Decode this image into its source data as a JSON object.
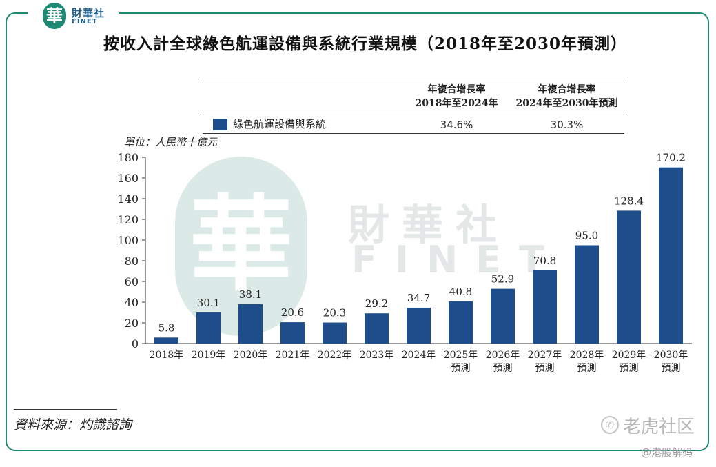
{
  "brand": {
    "badge": "華",
    "name_cn": "財華社",
    "name_en": "FINET"
  },
  "watermark": {
    "cn": "財華社",
    "en": "FINET",
    "badge": "華"
  },
  "watermark2": {
    "icon": "✆",
    "text": "老虎社区",
    "sub": "@港股解码"
  },
  "title": "按收入計全球綠色航運設備與系統行業規模（2018年至2030年預測）",
  "table": {
    "col1": [
      "年複合增長率",
      "2018年至2024年"
    ],
    "col2": [
      "年複合增長率",
      "2024年至2030年預測"
    ],
    "row_label": "綠色航運設備與系統",
    "cagr1": "34.6%",
    "cagr2": "30.3%"
  },
  "unit": "單位：人民幣十億元",
  "source": "資料來源：灼識諮詢",
  "colors": {
    "bar": "#1e4d8c",
    "frame": "#1f8a73"
  },
  "chart_data": {
    "type": "bar",
    "title": "按收入計全球綠色航運設備與系統行業規模（2018年至2030年預測）",
    "ylabel": "單位：人民幣十億元",
    "xlabel": "",
    "ylim": [
      0,
      180
    ],
    "yticks": [
      0,
      20,
      40,
      60,
      80,
      100,
      120,
      140,
      160,
      180
    ],
    "categories": [
      [
        "2018年"
      ],
      [
        "2019年"
      ],
      [
        "2020年"
      ],
      [
        "2021年"
      ],
      [
        "2022年"
      ],
      [
        "2023年"
      ],
      [
        "2024年"
      ],
      [
        "2025年",
        "預測"
      ],
      [
        "2026年",
        "預測"
      ],
      [
        "2027年",
        "預測"
      ],
      [
        "2028年",
        "預測"
      ],
      [
        "2029年",
        "預測"
      ],
      [
        "2030年",
        "預測"
      ]
    ],
    "values": [
      5.8,
      30.1,
      38.1,
      20.6,
      20.3,
      29.2,
      34.7,
      40.8,
      52.9,
      70.8,
      95.0,
      128.4,
      170.2
    ],
    "labels": [
      "5.8",
      "30.1",
      "38.1",
      "20.6",
      "20.3",
      "29.2",
      "34.7",
      "40.8",
      "52.9",
      "70.8",
      "95.0",
      "128.4",
      "170.2"
    ],
    "series": [
      {
        "name": "綠色航運設備與系統"
      }
    ]
  }
}
